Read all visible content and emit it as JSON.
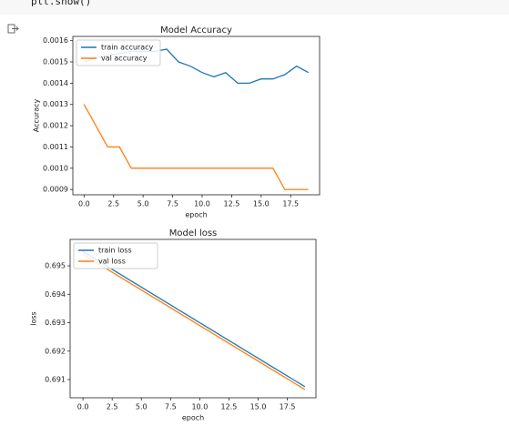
{
  "code": "plt.show()",
  "chart_data": [
    {
      "type": "line",
      "title": "Model Accuracy",
      "xlabel": "epoch",
      "ylabel": "Accuracy",
      "x": [
        0,
        1,
        2,
        3,
        4,
        5,
        6,
        7,
        8,
        9,
        10,
        11,
        12,
        13,
        14,
        15,
        16,
        17,
        18,
        19
      ],
      "series": [
        {
          "name": "train accuracy",
          "color": "#1f77b4",
          "values": [
            0.0015,
            0.00152,
            0.00153,
            0.00154,
            0.00155,
            0.00155,
            0.00155,
            0.00156,
            0.0015,
            0.00148,
            0.00145,
            0.00143,
            0.00145,
            0.0014,
            0.0014,
            0.00142,
            0.00142,
            0.00144,
            0.00148,
            0.00145
          ]
        },
        {
          "name": "val accuracy",
          "color": "#ff7f0e",
          "values": [
            0.0013,
            0.0012,
            0.0011,
            0.0011,
            0.001,
            0.001,
            0.001,
            0.001,
            0.001,
            0.001,
            0.001,
            0.001,
            0.001,
            0.001,
            0.001,
            0.001,
            0.001,
            0.0009,
            0.0009,
            0.0009
          ]
        }
      ],
      "xlim": [
        -0.95,
        19.95
      ],
      "ylim": [
        0.000875,
        0.00162
      ],
      "xticks": [
        {
          "value": 0,
          "label": "0.0"
        },
        2.5,
        {
          "value": 5,
          "label": "5.0"
        },
        7.5,
        {
          "value": 10,
          "label": "10.0"
        },
        12.5,
        {
          "value": 15,
          "label": "15.0"
        },
        17.5
      ],
      "yticks": [
        0.0009,
        {
          "value": 0.001,
          "label": "0.0010"
        },
        0.0011,
        0.0012,
        0.0013,
        0.0014,
        0.0015,
        0.0016
      ],
      "legend": "upper left"
    },
    {
      "type": "line",
      "title": "Model loss",
      "xlabel": "epoch",
      "ylabel": "loss",
      "x": [
        0,
        1,
        2,
        3,
        4,
        5,
        6,
        7,
        8,
        9,
        10,
        11,
        12,
        13,
        14,
        15,
        16,
        17,
        18,
        19
      ],
      "series": [
        {
          "name": "train loss",
          "color": "#1f77b4",
          "values": [
            0.6955,
            0.69525,
            0.695,
            0.69475,
            0.6945,
            0.69425,
            0.694,
            0.69375,
            0.6935,
            0.69325,
            0.693,
            0.69275,
            0.6925,
            0.69225,
            0.692,
            0.69175,
            0.6915,
            0.69125,
            0.691,
            0.69075
          ]
        },
        {
          "name": "val loss",
          "color": "#ff7f0e",
          "values": [
            0.6954,
            0.69515,
            0.6949,
            0.69465,
            0.6944,
            0.69415,
            0.6939,
            0.69365,
            0.6934,
            0.69315,
            0.6929,
            0.69265,
            0.6924,
            0.69215,
            0.6919,
            0.69165,
            0.6914,
            0.69115,
            0.6909,
            0.69065
          ]
        }
      ],
      "xlim": [
        -1.1,
        19.95
      ],
      "ylim": [
        0.69036,
        0.69593
      ],
      "xticks": [
        {
          "value": 0,
          "label": "0.0"
        },
        2.5,
        {
          "value": 5,
          "label": "5.0"
        },
        7.5,
        {
          "value": 10,
          "label": "10.0"
        },
        12.5,
        {
          "value": 15,
          "label": "15.0"
        },
        17.5
      ],
      "yticks": [
        0.691,
        0.692,
        0.693,
        0.694,
        0.695
      ],
      "legend": "upper left"
    }
  ]
}
